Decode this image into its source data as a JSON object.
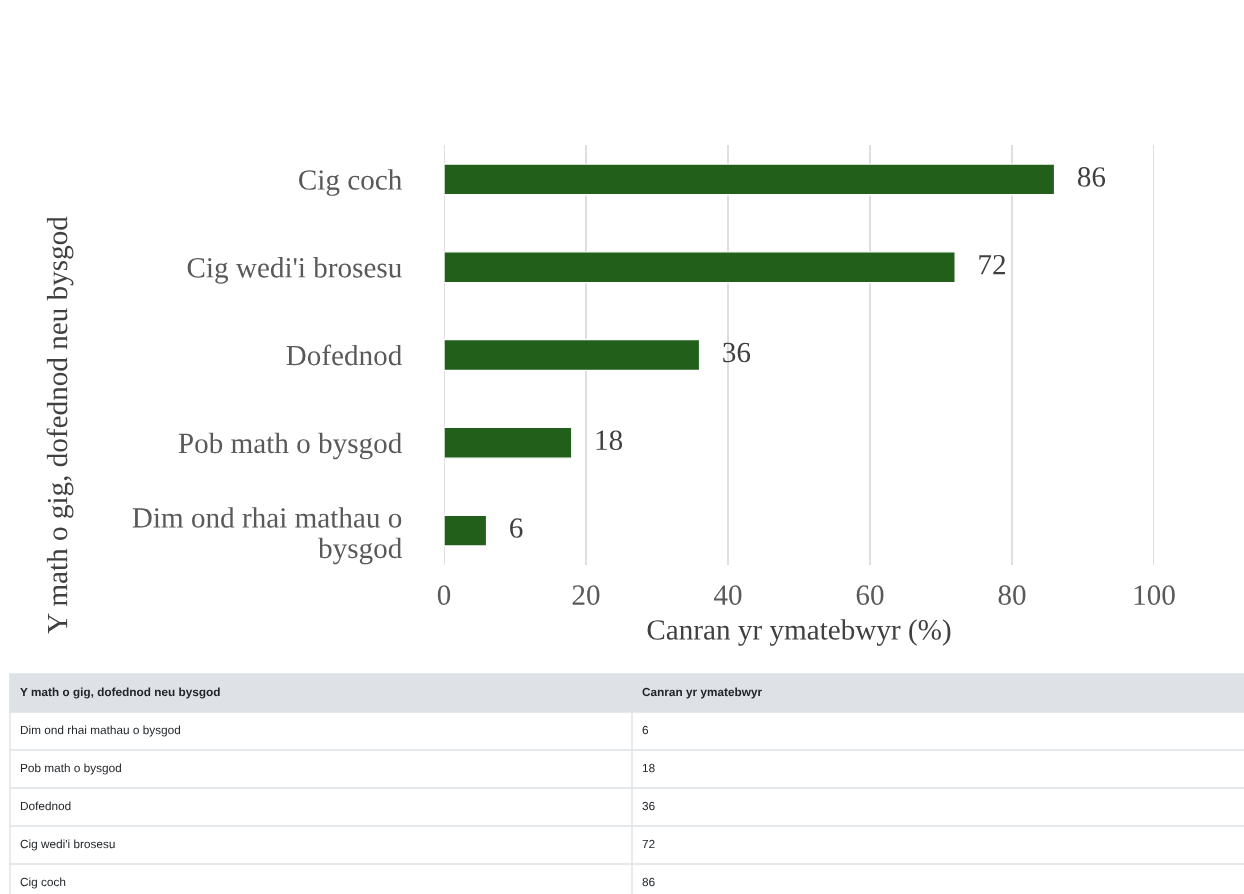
{
  "chart_data": {
    "type": "bar",
    "orientation": "horizontal",
    "categories": [
      "Cig coch",
      "Cig wedi'i brosesu",
      "Dofednod",
      "Pob math o bysgod",
      "Dim ond rhai mathau o bysgod"
    ],
    "values": [
      86,
      72,
      36,
      18,
      6
    ],
    "color": "#215f1a",
    "xlabel": "Canran yr ymatebwyr (%)",
    "ylabel": "Y math o gig, dofednod neu bysgod",
    "xlim": [
      0,
      100
    ],
    "xticks": [
      0,
      20,
      40,
      60,
      80,
      100
    ],
    "grid": "x",
    "data_labels": true,
    "annotations": [
      "Y math o gig, dofednod neu bysgod",
      "Canran yr ymatebwyr",
      "6",
      "18",
      "36",
      "72",
      "86"
    ]
  }
}
